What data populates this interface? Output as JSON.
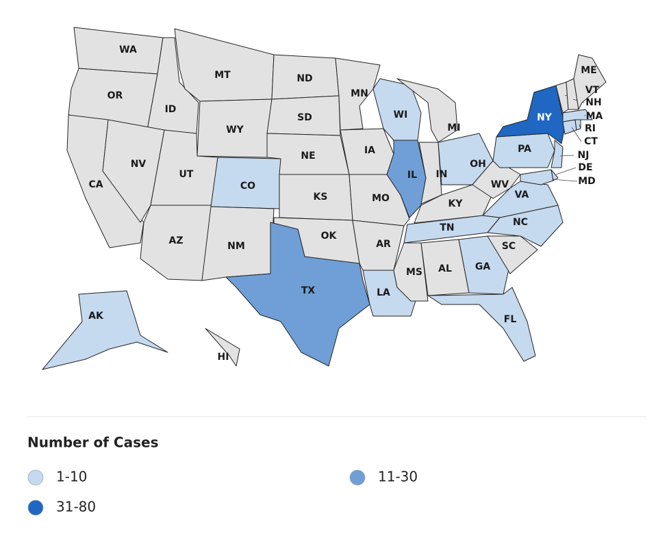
{
  "legend": {
    "title": "Number of Cases",
    "items": [
      {
        "label": "1-10",
        "color": "#c5d9ef"
      },
      {
        "label": "11-30",
        "color": "#6f9fd6"
      },
      {
        "label": "31-80",
        "color": "#1f67c2"
      }
    ]
  },
  "states": [
    {
      "abbr": "WA"
    },
    {
      "abbr": "OR"
    },
    {
      "abbr": "ID"
    },
    {
      "abbr": "MT"
    },
    {
      "abbr": "WY"
    },
    {
      "abbr": "CA"
    },
    {
      "abbr": "NV"
    },
    {
      "abbr": "UT"
    },
    {
      "abbr": "AZ"
    },
    {
      "abbr": "CO",
      "bin": "1-10"
    },
    {
      "abbr": "NM"
    },
    {
      "abbr": "ND"
    },
    {
      "abbr": "SD"
    },
    {
      "abbr": "NE"
    },
    {
      "abbr": "KS"
    },
    {
      "abbr": "OK"
    },
    {
      "abbr": "TX",
      "bin": "11-30"
    },
    {
      "abbr": "MN"
    },
    {
      "abbr": "IA"
    },
    {
      "abbr": "MO"
    },
    {
      "abbr": "AR"
    },
    {
      "abbr": "LA",
      "bin": "1-10"
    },
    {
      "abbr": "WI",
      "bin": "1-10"
    },
    {
      "abbr": "IL",
      "bin": "11-30"
    },
    {
      "abbr": "MI"
    },
    {
      "abbr": "IN"
    },
    {
      "abbr": "OH",
      "bin": "1-10"
    },
    {
      "abbr": "KY"
    },
    {
      "abbr": "TN",
      "bin": "1-10"
    },
    {
      "abbr": "MS"
    },
    {
      "abbr": "AL"
    },
    {
      "abbr": "GA",
      "bin": "1-10"
    },
    {
      "abbr": "FL",
      "bin": "1-10"
    },
    {
      "abbr": "SC"
    },
    {
      "abbr": "NC",
      "bin": "1-10"
    },
    {
      "abbr": "VA",
      "bin": "1-10"
    },
    {
      "abbr": "WV"
    },
    {
      "abbr": "PA",
      "bin": "1-10"
    },
    {
      "abbr": "NY",
      "bin": "31-80"
    },
    {
      "abbr": "NJ",
      "bin": "1-10"
    },
    {
      "abbr": "DE",
      "bin": "1-10"
    },
    {
      "abbr": "MD",
      "bin": "1-10"
    },
    {
      "abbr": "CT",
      "bin": "1-10"
    },
    {
      "abbr": "RI",
      "bin": "1-10"
    },
    {
      "abbr": "MA",
      "bin": "1-10"
    },
    {
      "abbr": "VT"
    },
    {
      "abbr": "NH"
    },
    {
      "abbr": "ME"
    },
    {
      "abbr": "AK",
      "bin": "1-10"
    },
    {
      "abbr": "HI"
    }
  ]
}
